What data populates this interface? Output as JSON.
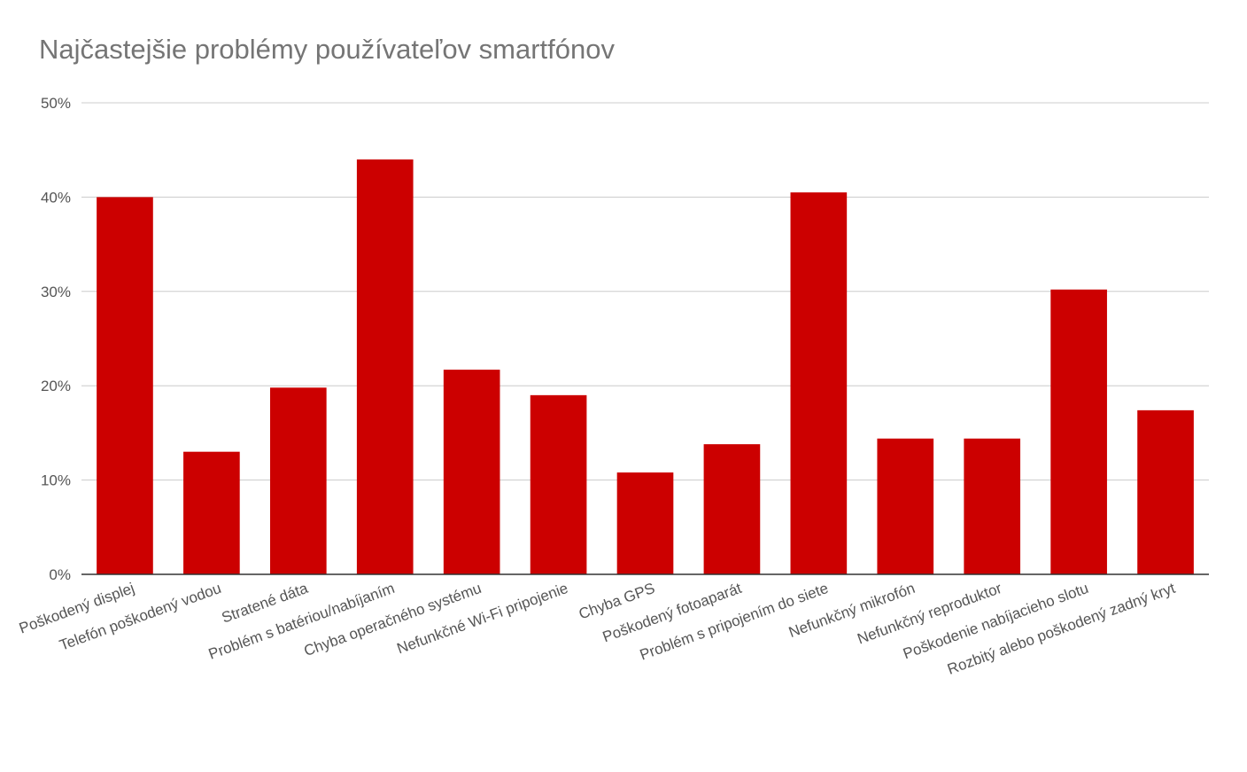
{
  "chart_data": {
    "type": "bar",
    "title": "Najčastejšie problémy používateľov smartfónov",
    "xlabel": "",
    "ylabel": "",
    "ylim": [
      0,
      0.5
    ],
    "yticks": [
      {
        "value": 0,
        "label": "0%"
      },
      {
        "value": 0.1,
        "label": "10%"
      },
      {
        "value": 0.2,
        "label": "20%"
      },
      {
        "value": 0.3,
        "label": "30%"
      },
      {
        "value": 0.4,
        "label": "40%"
      },
      {
        "value": 0.5,
        "label": "50%"
      }
    ],
    "grid": true,
    "bar_color": "#cc0000",
    "categories": [
      "Poškodený displej",
      "Telefón poškodený vodou",
      "Stratené dáta",
      "Problém s batériou/nabíjaním",
      "Chyba operačného systému",
      "Nefunkčné Wi-Fi pripojenie",
      "Chyba GPS",
      "Poškodený fotoaparát",
      "Problém s pripojením do siete",
      "Nefunkčný mikrofón",
      "Nefunkčný reproduktor",
      "Poškodenie nabíjacieho slotu",
      "Rozbitý alebo poškodený zadný kryt"
    ],
    "values": [
      0.4,
      0.13,
      0.198,
      0.44,
      0.217,
      0.19,
      0.108,
      0.138,
      0.405,
      0.144,
      0.144,
      0.302,
      0.174
    ]
  }
}
